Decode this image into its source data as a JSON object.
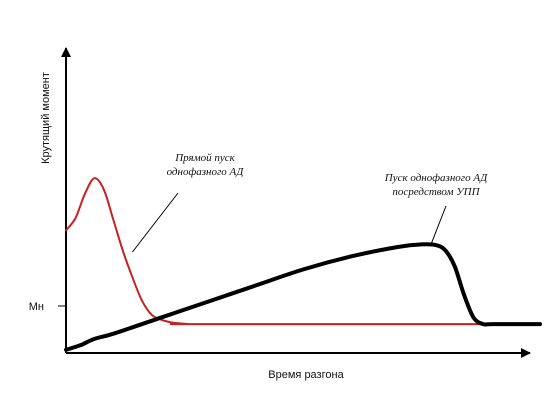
{
  "chart_data": {
    "type": "line",
    "xlabel": "Время разгона",
    "ylabel": "Крутящий момент",
    "yticks": [
      {
        "label": "Мн",
        "value": 1
      }
    ],
    "xlim": [
      0,
      100
    ],
    "ylim": [
      0,
      4
    ],
    "grid": false,
    "series": [
      {
        "color": "#c8201e",
        "line_style": "thin",
        "x": [
          0,
          2,
          4,
          6,
          8,
          10,
          12,
          14,
          16,
          18,
          20,
          22,
          24,
          26,
          28,
          100
        ],
        "y": [
          1.91,
          2.1,
          2.48,
          2.72,
          2.54,
          2.07,
          1.59,
          1.18,
          0.82,
          0.6,
          0.52,
          0.48,
          0.46,
          0.45,
          0.45,
          0.45
        ]
      },
      {
        "color": "#000000",
        "line_style": "thick",
        "x": [
          0,
          3,
          6,
          10,
          20,
          30,
          40,
          50,
          60,
          70,
          75,
          78,
          80,
          82,
          84,
          86,
          88,
          90,
          100
        ],
        "y": [
          0.05,
          0.12,
          0.22,
          0.3,
          0.55,
          0.8,
          1.05,
          1.3,
          1.5,
          1.65,
          1.69,
          1.68,
          1.6,
          1.35,
          0.9,
          0.55,
          0.45,
          0.45,
          0.45
        ]
      }
    ],
    "annotations": [
      {
        "lines": [
          "Прямой пуск",
          "однофазного АД"
        ],
        "target_series": 0,
        "target_x": 14,
        "target_y": 1.57
      },
      {
        "lines": [
          "Пуск однофазного АД",
          "посредством УПП"
        ],
        "target_series": 1,
        "target_x": 77,
        "target_y": 1.69
      }
    ]
  }
}
